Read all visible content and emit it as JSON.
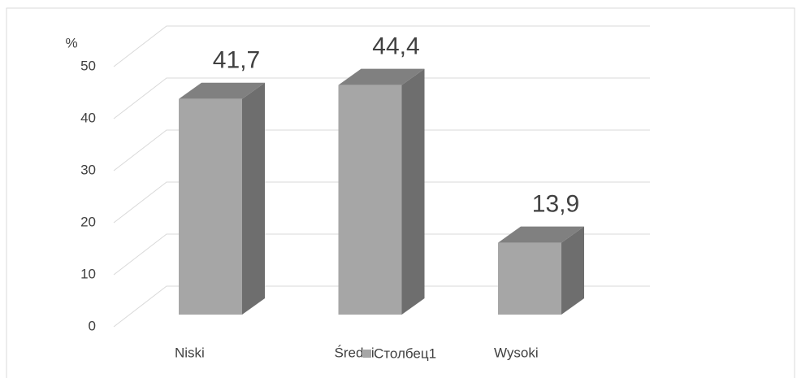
{
  "chart_data": {
    "type": "bar3d",
    "y_label": "%",
    "categories": [
      "Niski",
      "Średni",
      "Wysoki"
    ],
    "series": [
      {
        "name": "Столбец1",
        "color": "#a6a6a6",
        "values": [
          41.7,
          44.4,
          13.9
        ],
        "value_labels": [
          "41,7",
          "44,4",
          "13,9"
        ]
      }
    ],
    "ylim": [
      0,
      50
    ],
    "yticks": [
      0,
      10,
      20,
      30,
      40,
      50
    ],
    "grid": true
  }
}
